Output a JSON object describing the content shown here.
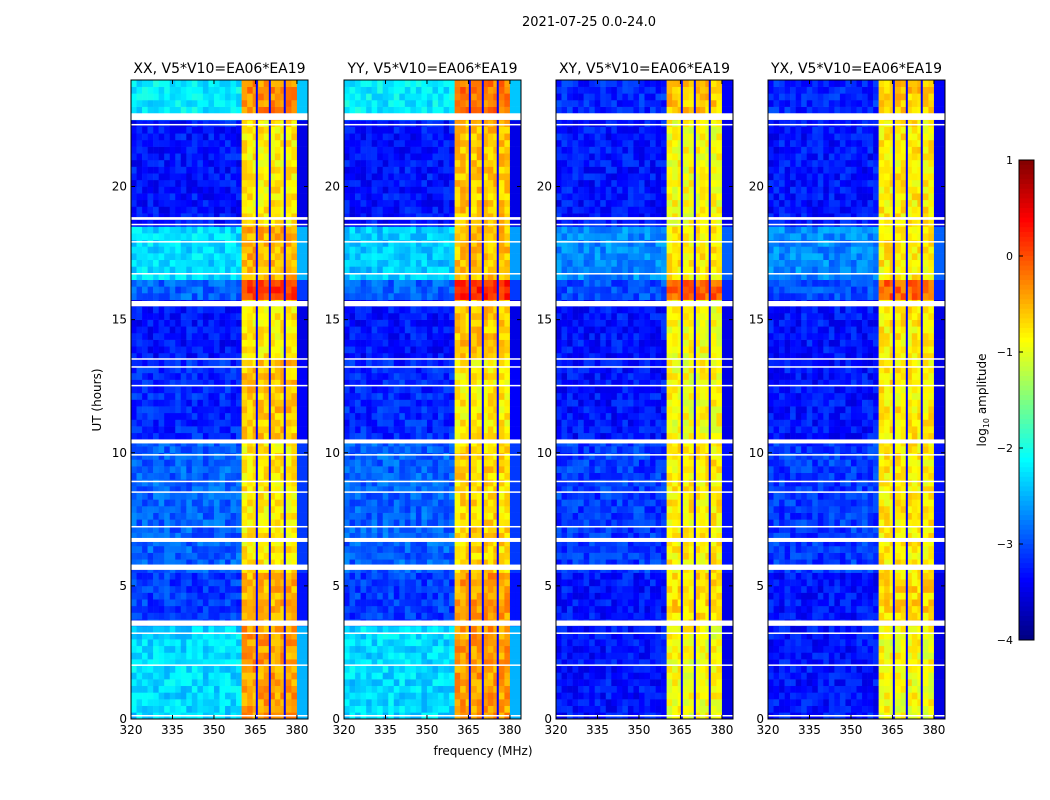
{
  "chart_data": {
    "type": "heatmap",
    "title": "2021-07-25 0.0-24.0",
    "xlabel": "frequency (MHz)",
    "ylabel": "UT (hours)",
    "xlim": [
      320,
      384
    ],
    "ylim": [
      0,
      24
    ],
    "xticks": [
      320,
      335,
      350,
      365,
      380
    ],
    "yticks": [
      0,
      5,
      10,
      15,
      20
    ],
    "colormap": "jet",
    "colorbar": {
      "label": "log",
      "label_sub": "10",
      "label_rest": " amplitude",
      "range": [
        -4,
        1
      ],
      "ticks": [
        1,
        0,
        -1,
        -2,
        -3,
        -4
      ],
      "tick_labels": [
        "1",
        "0",
        "−1",
        "−2",
        "−3",
        "−4"
      ]
    },
    "band_range": [
      360.7,
      380
    ],
    "channel_gaps": [
      365.5,
      370.2,
      375.6
    ],
    "flagged_times": [
      [
        22.5,
        22.75
      ],
      [
        22.3,
        22.35
      ],
      [
        18.75,
        18.85
      ],
      [
        18.55,
        18.6
      ],
      [
        17.9,
        17.95
      ],
      [
        16.7,
        16.75
      ],
      [
        15.5,
        15.7
      ],
      [
        13.5,
        13.55
      ],
      [
        13.2,
        13.25
      ],
      [
        12.5,
        12.55
      ],
      [
        10.35,
        10.5
      ],
      [
        9.9,
        9.95
      ],
      [
        8.9,
        8.95
      ],
      [
        8.5,
        8.55
      ],
      [
        7.2,
        7.25
      ],
      [
        6.65,
        6.8
      ],
      [
        5.6,
        5.8
      ],
      [
        3.5,
        3.7
      ],
      [
        3.2,
        3.25
      ],
      [
        2.0,
        2.05
      ],
      [
        0.1,
        0.15
      ]
    ],
    "panels": [
      {
        "title": "XX, V5*V10=EA06*EA19",
        "segments": [
          {
            "t": [
              0,
              3.5
            ],
            "bg": -2.3,
            "band": -0.4
          },
          {
            "t": [
              3.5,
              5.6
            ],
            "bg": -3.1,
            "band": -0.5
          },
          {
            "t": [
              5.6,
              10.5
            ],
            "bg": -2.9,
            "band": -0.8
          },
          {
            "t": [
              10.5,
              13.5
            ],
            "bg": -3.2,
            "band": -0.6
          },
          {
            "t": [
              13.5,
              15.7
            ],
            "bg": -3.3,
            "band": -0.8
          },
          {
            "t": [
              15.7,
              16.4
            ],
            "bg": -2.9,
            "band": 0.1
          },
          {
            "t": [
              16.4,
              18.6
            ],
            "bg": -2.3,
            "band": -0.5
          },
          {
            "t": [
              18.6,
              22.5
            ],
            "bg": -3.3,
            "band": -0.8
          },
          {
            "t": [
              22.5,
              24
            ],
            "bg": -2.2,
            "band": -0.3
          }
        ]
      },
      {
        "title": "YY, V5*V10=EA06*EA19",
        "segments": [
          {
            "t": [
              0,
              3.5
            ],
            "bg": -2.3,
            "band": -0.4
          },
          {
            "t": [
              3.5,
              5.6
            ],
            "bg": -3.1,
            "band": -0.4
          },
          {
            "t": [
              5.6,
              10.5
            ],
            "bg": -2.9,
            "band": -0.7
          },
          {
            "t": [
              10.5,
              13.5
            ],
            "bg": -3.2,
            "band": -0.8
          },
          {
            "t": [
              13.5,
              15.7
            ],
            "bg": -3.3,
            "band": -0.6
          },
          {
            "t": [
              15.7,
              16.4
            ],
            "bg": -2.9,
            "band": 0.2
          },
          {
            "t": [
              16.4,
              18.6
            ],
            "bg": -2.4,
            "band": -0.6
          },
          {
            "t": [
              18.6,
              22.5
            ],
            "bg": -3.3,
            "band": -0.6
          },
          {
            "t": [
              22.5,
              24
            ],
            "bg": -2.2,
            "band": -0.2
          }
        ]
      },
      {
        "title": "XY, V5*V10=EA06*EA19",
        "segments": [
          {
            "t": [
              0,
              3.5
            ],
            "bg": -3.3,
            "band": -0.9
          },
          {
            "t": [
              3.5,
              5.6
            ],
            "bg": -3.3,
            "band": -0.7
          },
          {
            "t": [
              5.6,
              10.5
            ],
            "bg": -3.1,
            "band": -0.8
          },
          {
            "t": [
              10.5,
              13.5
            ],
            "bg": -3.3,
            "band": -0.9
          },
          {
            "t": [
              13.5,
              15.7
            ],
            "bg": -3.3,
            "band": -0.9
          },
          {
            "t": [
              15.7,
              16.4
            ],
            "bg": -3.0,
            "band": -0.1
          },
          {
            "t": [
              16.4,
              18.6
            ],
            "bg": -2.7,
            "band": -0.8
          },
          {
            "t": [
              18.6,
              22.5
            ],
            "bg": -3.3,
            "band": -0.9
          },
          {
            "t": [
              22.5,
              24
            ],
            "bg": -3.2,
            "band": -0.6
          }
        ]
      },
      {
        "title": "YX, V5*V10=EA06*EA19",
        "segments": [
          {
            "t": [
              0,
              3.5
            ],
            "bg": -3.3,
            "band": -0.9
          },
          {
            "t": [
              3.5,
              5.6
            ],
            "bg": -3.3,
            "band": -0.7
          },
          {
            "t": [
              5.6,
              10.5
            ],
            "bg": -3.1,
            "band": -0.8
          },
          {
            "t": [
              10.5,
              13.5
            ],
            "bg": -3.3,
            "band": -0.8
          },
          {
            "t": [
              13.5,
              15.7
            ],
            "bg": -3.3,
            "band": -0.8
          },
          {
            "t": [
              15.7,
              16.4
            ],
            "bg": -3.0,
            "band": -0.1
          },
          {
            "t": [
              16.4,
              18.6
            ],
            "bg": -2.7,
            "band": -0.8
          },
          {
            "t": [
              18.6,
              22.5
            ],
            "bg": -3.3,
            "band": -0.8
          },
          {
            "t": [
              22.5,
              24
            ],
            "bg": -3.2,
            "band": -0.6
          }
        ]
      }
    ]
  }
}
